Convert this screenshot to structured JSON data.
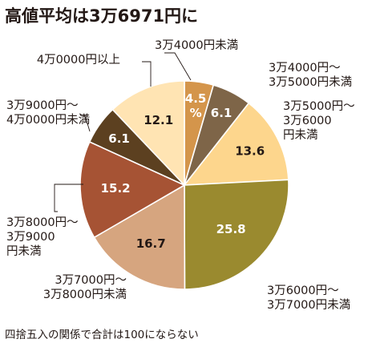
{
  "chart_data": {
    "type": "pie",
    "title": "高値平均は3万6971円に",
    "note": "四捨五入の関係で合計は100にならない",
    "start_angle_deg": 0,
    "direction": "clockwise",
    "slices": [
      {
        "label": "3万4000円未満",
        "value": 4.5,
        "value_text": "4.5%",
        "color": "#d4954b",
        "text_color": "#ffffff"
      },
      {
        "label": "3万4000円～3万5000円未満",
        "value": 6.1,
        "value_text": "6.1",
        "color": "#7e6548",
        "text_color": "#ffffff"
      },
      {
        "label": "3万5000円～3万6000円未満",
        "value": 13.6,
        "value_text": "13.6",
        "color": "#fdd68d",
        "text_color": "#231815"
      },
      {
        "label": "3万6000円～3万7000円未満",
        "value": 25.8,
        "value_text": "25.8",
        "color": "#9a8a2f",
        "text_color": "#ffffff"
      },
      {
        "label": "3万7000円～3万8000円未満",
        "value": 16.7,
        "value_text": "16.7",
        "color": "#d6a57f",
        "text_color": "#231815"
      },
      {
        "label": "3万8000円～3万9000円未満",
        "value": 15.2,
        "value_text": "15.2",
        "color": "#a65334",
        "text_color": "#ffffff"
      },
      {
        "label": "3万9000円～4万0000円未満",
        "value": 6.1,
        "value_text": "6.1",
        "color": "#5c4020",
        "text_color": "#ffffff"
      },
      {
        "label": "4万0000円以上",
        "value": 12.1,
        "value_text": "12.1",
        "color": "#ffe4b3",
        "text_color": "#231815"
      }
    ]
  }
}
